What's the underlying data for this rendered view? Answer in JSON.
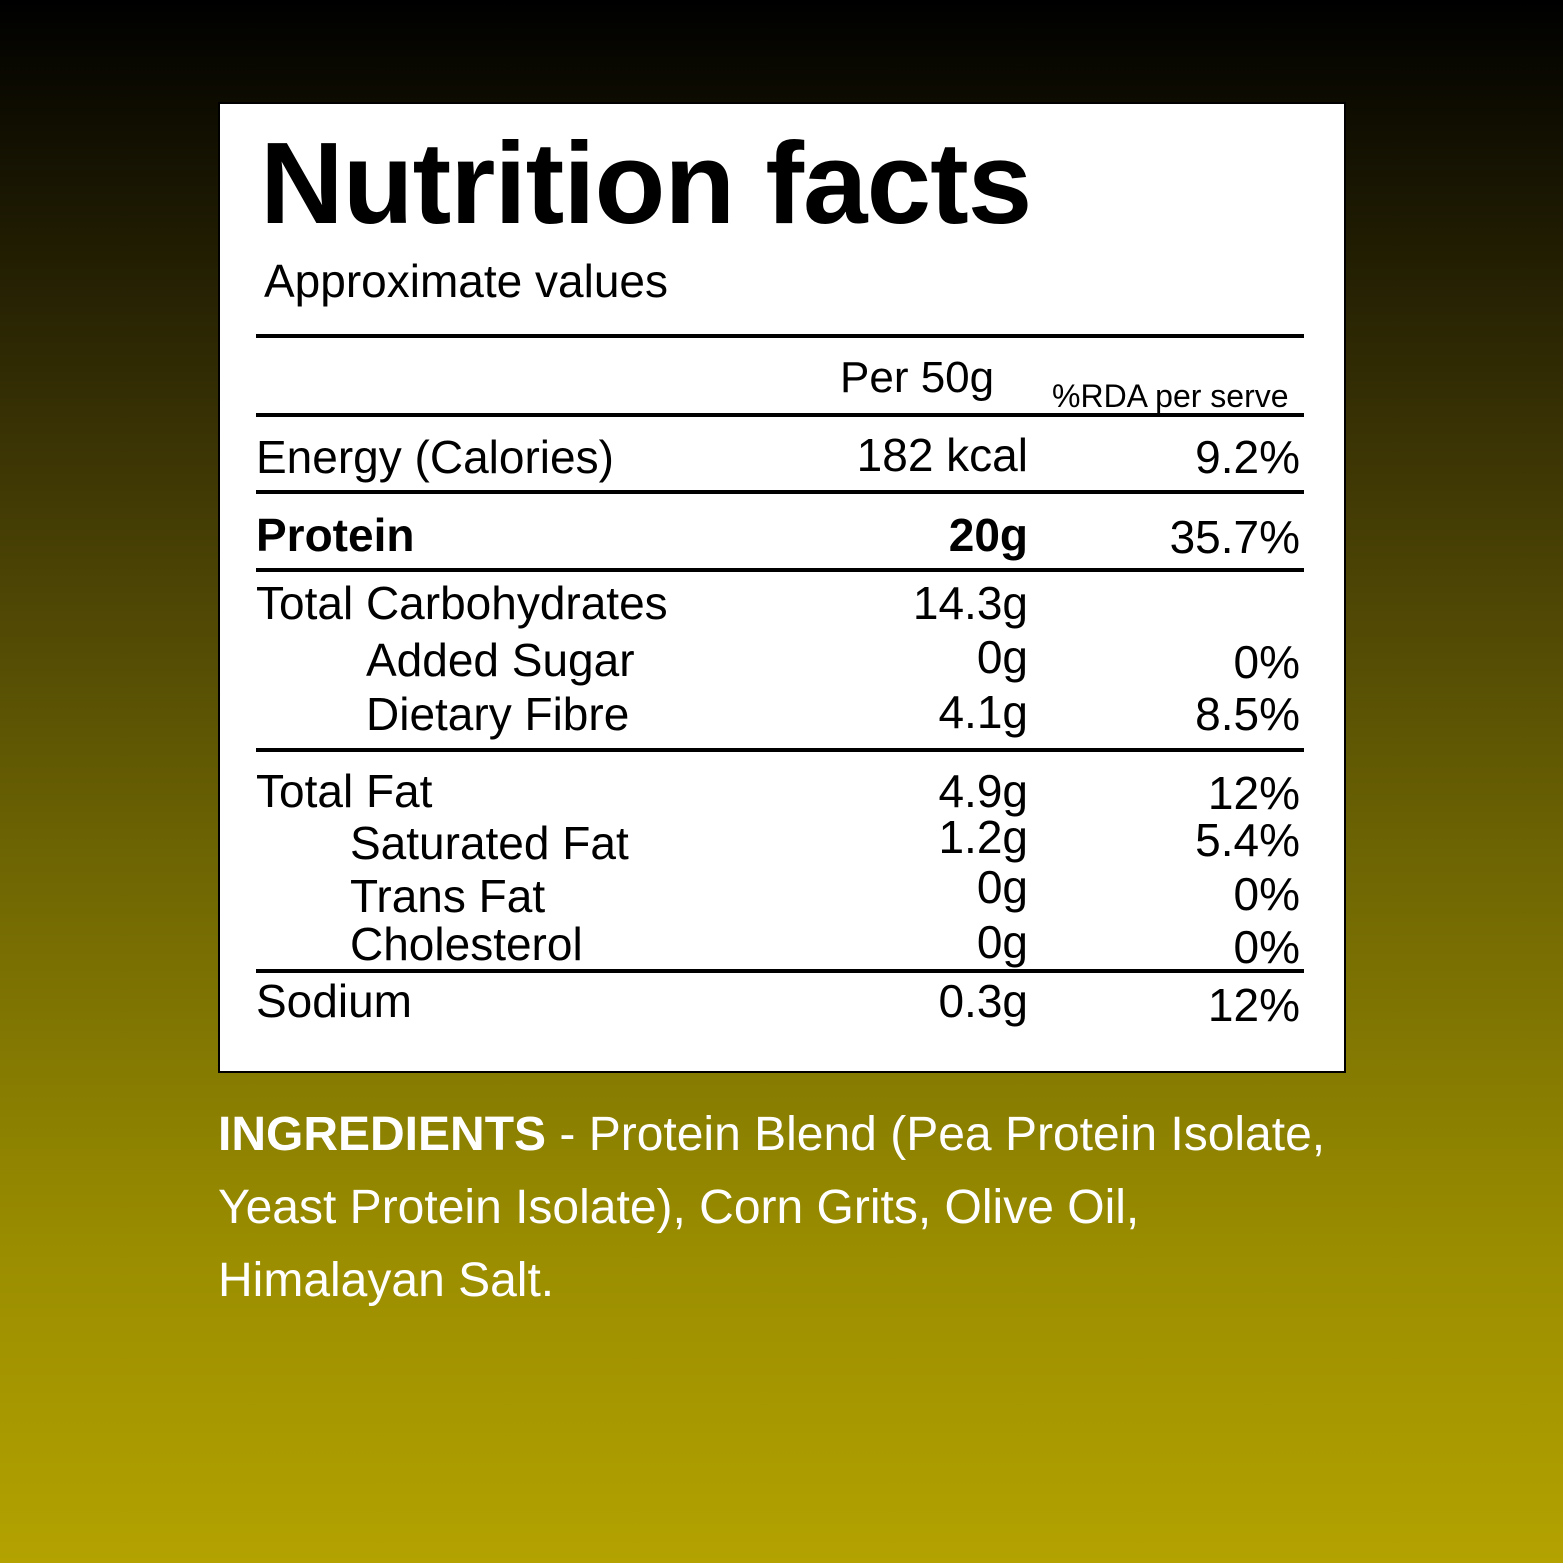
{
  "label": {
    "title": "Nutrition facts",
    "subtitle": "Approximate values",
    "column_headers": {
      "per": "Per 50g",
      "rda": "%RDA per serve"
    },
    "rows": [
      {
        "name": "Energy (Calories)",
        "amount": "182 kcal",
        "rda": "9.2%"
      },
      {
        "name": "Protein",
        "amount": "20g",
        "rda": "35.7%"
      },
      {
        "name": "Total Carbohydrates",
        "amount": "14.3g",
        "rda": ""
      },
      {
        "name": "Added Sugar",
        "amount": "0g",
        "rda": "0%"
      },
      {
        "name": "Dietary Fibre",
        "amount": "4.1g",
        "rda": "8.5%"
      },
      {
        "name": "Total Fat",
        "amount": "4.9g",
        "rda": "12%"
      },
      {
        "name": "Saturated Fat",
        "amount": "1.2g",
        "rda": "5.4%"
      },
      {
        "name": "Trans Fat",
        "amount": "0g",
        "rda": "0%"
      },
      {
        "name": "Cholesterol",
        "amount": "0g",
        "rda": "0%"
      },
      {
        "name": "Sodium",
        "amount": "0.3g",
        "rda": "12%"
      }
    ]
  },
  "ingredients": {
    "label": "INGREDIENTS",
    "text": " - Protein Blend (Pea Protein Isolate, Yeast Protein Isolate), Corn Grits, Olive Oil, Himalayan Salt."
  },
  "colors": {
    "gradient_top": "#000000",
    "gradient_bottom": "#b3a200",
    "panel": "#ffffff",
    "text_on_gradient": "#ffffff"
  }
}
